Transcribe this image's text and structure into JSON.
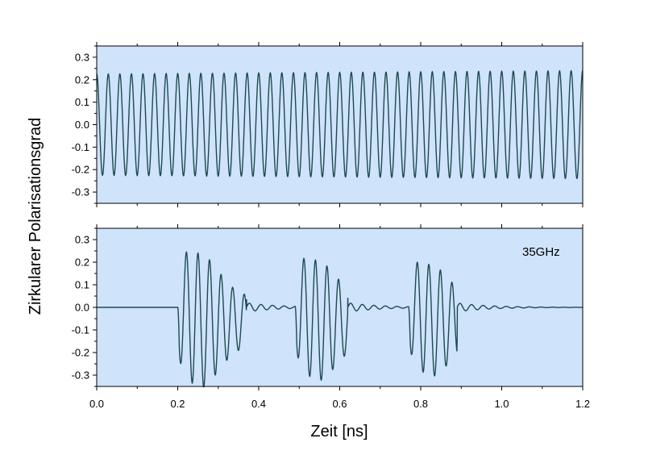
{
  "chart_data": [
    {
      "type": "line",
      "panel": "top",
      "annotation": "",
      "xlim": [
        0.0,
        1.2
      ],
      "ylim": [
        -0.35,
        0.35
      ],
      "yticks": [
        "0.3",
        "0.2",
        "0.1",
        "0.0",
        "-0.1",
        "-0.2",
        "-0.3"
      ],
      "ytick_values": [
        0.3,
        0.2,
        0.1,
        0.0,
        -0.1,
        -0.2,
        -0.3
      ],
      "series": [
        {
          "signal": "continuous_sine",
          "frequency_ghz": 35,
          "amplitude_start": 0.225,
          "amplitude_end": 0.24
        }
      ],
      "background": "#cfe3fb",
      "line_color": "#1f4a4f"
    },
    {
      "type": "line",
      "panel": "bottom",
      "annotation": "35GHz",
      "xlim": [
        0.0,
        1.2
      ],
      "ylim": [
        -0.35,
        0.35
      ],
      "yticks": [
        "0.3",
        "0.2",
        "0.1",
        "0.0",
        "-0.1",
        "-0.2",
        "-0.3"
      ],
      "ytick_values": [
        0.3,
        0.2,
        0.1,
        0.0,
        -0.1,
        -0.2,
        -0.3
      ],
      "xticks": [
        "0.0",
        "0.2",
        "0.4",
        "0.6",
        "0.8",
        "1.0",
        "1.2"
      ],
      "xtick_values": [
        0.0,
        0.2,
        0.4,
        0.6,
        0.8,
        1.0,
        1.2
      ],
      "xlabel": "Zeit [ns]",
      "series": [
        {
          "signal": "burst",
          "frequency_ghz": 35,
          "bursts": [
            {
              "start": 0.2,
              "end": 0.37,
              "peak": 0.3
            },
            {
              "start": 0.49,
              "end": 0.62,
              "peak": 0.27
            },
            {
              "start": 0.77,
              "end": 0.89,
              "peak": 0.25
            }
          ]
        }
      ],
      "background": "#cfe3fb",
      "line_color": "#1f4a4f"
    }
  ],
  "ylabel": "Zirkularer Polarisationsgrad"
}
